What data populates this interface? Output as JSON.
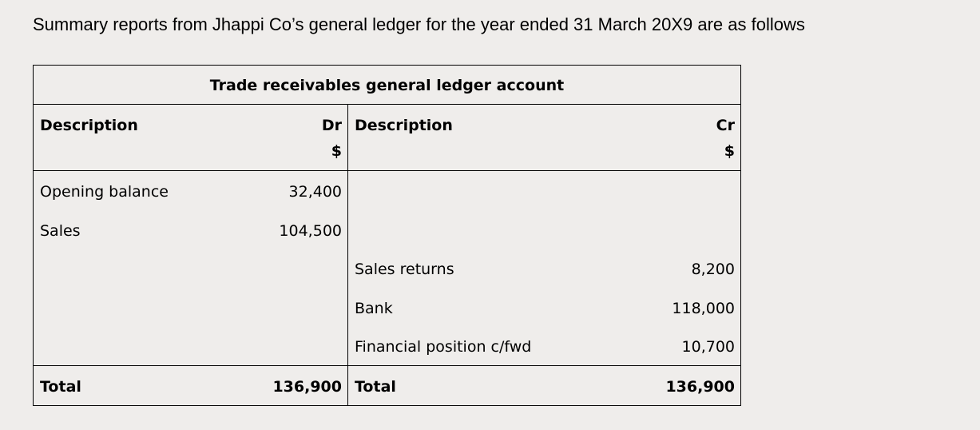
{
  "intro": "Summary reports from Jhappi Co’s general ledger for the year ended 31 March 20X9 are as follows",
  "ledger": {
    "title": "Trade receivables general ledger account",
    "header": {
      "dr_description": "Description",
      "dr_label": "Dr",
      "dr_currency": "$",
      "cr_description": "Description",
      "cr_label": "Cr",
      "cr_currency": "$"
    },
    "debit_entries": [
      {
        "description": "Opening balance",
        "amount": "32,400"
      },
      {
        "description": "Sales",
        "amount": "104,500"
      }
    ],
    "credit_entries": [
      {
        "description": "Sales returns",
        "amount": "8,200"
      },
      {
        "description": "Bank",
        "amount": "118,000"
      },
      {
        "description": "Financial position c/fwd",
        "amount": "10,700"
      }
    ],
    "totals": {
      "dr_label": "Total",
      "dr_amount": "136,900",
      "cr_label": "Total",
      "cr_amount": "136,900"
    }
  }
}
